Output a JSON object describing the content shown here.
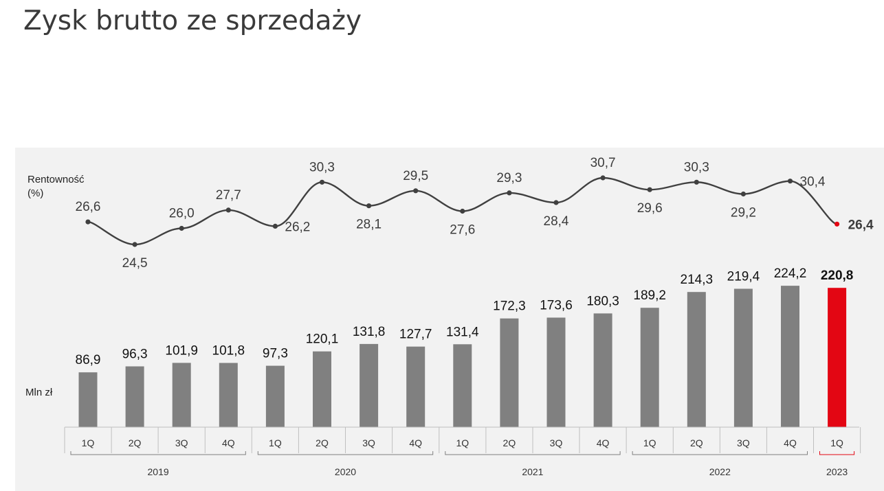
{
  "title": "Zysk brutto ze sprzedaży",
  "margin_label_line1": "Rentowność",
  "margin_label_line2": "(%)",
  "bars_label": "Mln zł",
  "colors": {
    "bar": "#808080",
    "highlight": "#e30613",
    "line": "#404040",
    "panel": "#f2f2f2"
  },
  "chart_data": [
    {
      "type": "bar",
      "categories": [
        "1Q",
        "2Q",
        "3Q",
        "4Q",
        "1Q",
        "2Q",
        "3Q",
        "4Q",
        "1Q",
        "2Q",
        "3Q",
        "4Q",
        "1Q",
        "2Q",
        "3Q",
        "4Q",
        "1Q"
      ],
      "groups": [
        {
          "label": "2019",
          "count": 4
        },
        {
          "label": "2020",
          "count": 4
        },
        {
          "label": "2021",
          "count": 4
        },
        {
          "label": "2022",
          "count": 4
        },
        {
          "label": "2023",
          "count": 1
        }
      ],
      "values": [
        86.9,
        96.3,
        101.9,
        101.8,
        97.3,
        120.1,
        131.8,
        127.7,
        131.4,
        172.3,
        173.6,
        180.3,
        189.2,
        214.3,
        219.4,
        224.2,
        220.8
      ],
      "labels": [
        "86,9",
        "96,3",
        "101,9",
        "101,8",
        "97,3",
        "120,1",
        "131,8",
        "127,7",
        "131,4",
        "172,3",
        "173,6",
        "180,3",
        "189,2",
        "214,3",
        "219,4",
        "224,2",
        "220,8"
      ],
      "highlight_index": 16,
      "ylabel": "Mln zł",
      "ylim": [
        0,
        240
      ]
    },
    {
      "type": "line",
      "values": [
        26.6,
        24.5,
        26.0,
        27.7,
        26.2,
        30.3,
        28.1,
        29.5,
        27.6,
        29.3,
        28.4,
        30.7,
        29.6,
        30.3,
        29.2,
        30.4,
        26.4
      ],
      "labels": [
        "26,6",
        "24,5",
        "26,0",
        "27,7",
        "26,2",
        "30,3",
        "28,1",
        "29,5",
        "27,6",
        "29,3",
        "28,4",
        "30,7",
        "29,6",
        "30,3",
        "29,2",
        "30,4",
        "26,4"
      ],
      "label_positions": [
        "above",
        "below",
        "above",
        "above",
        "right",
        "above",
        "below",
        "above",
        "below",
        "above",
        "below",
        "above",
        "below",
        "above",
        "below",
        "right",
        "right"
      ],
      "highlight_index": 16,
      "ylabel": "Rentowność (%)",
      "ylim": [
        24.5,
        30.7
      ],
      "smooth": true
    }
  ]
}
